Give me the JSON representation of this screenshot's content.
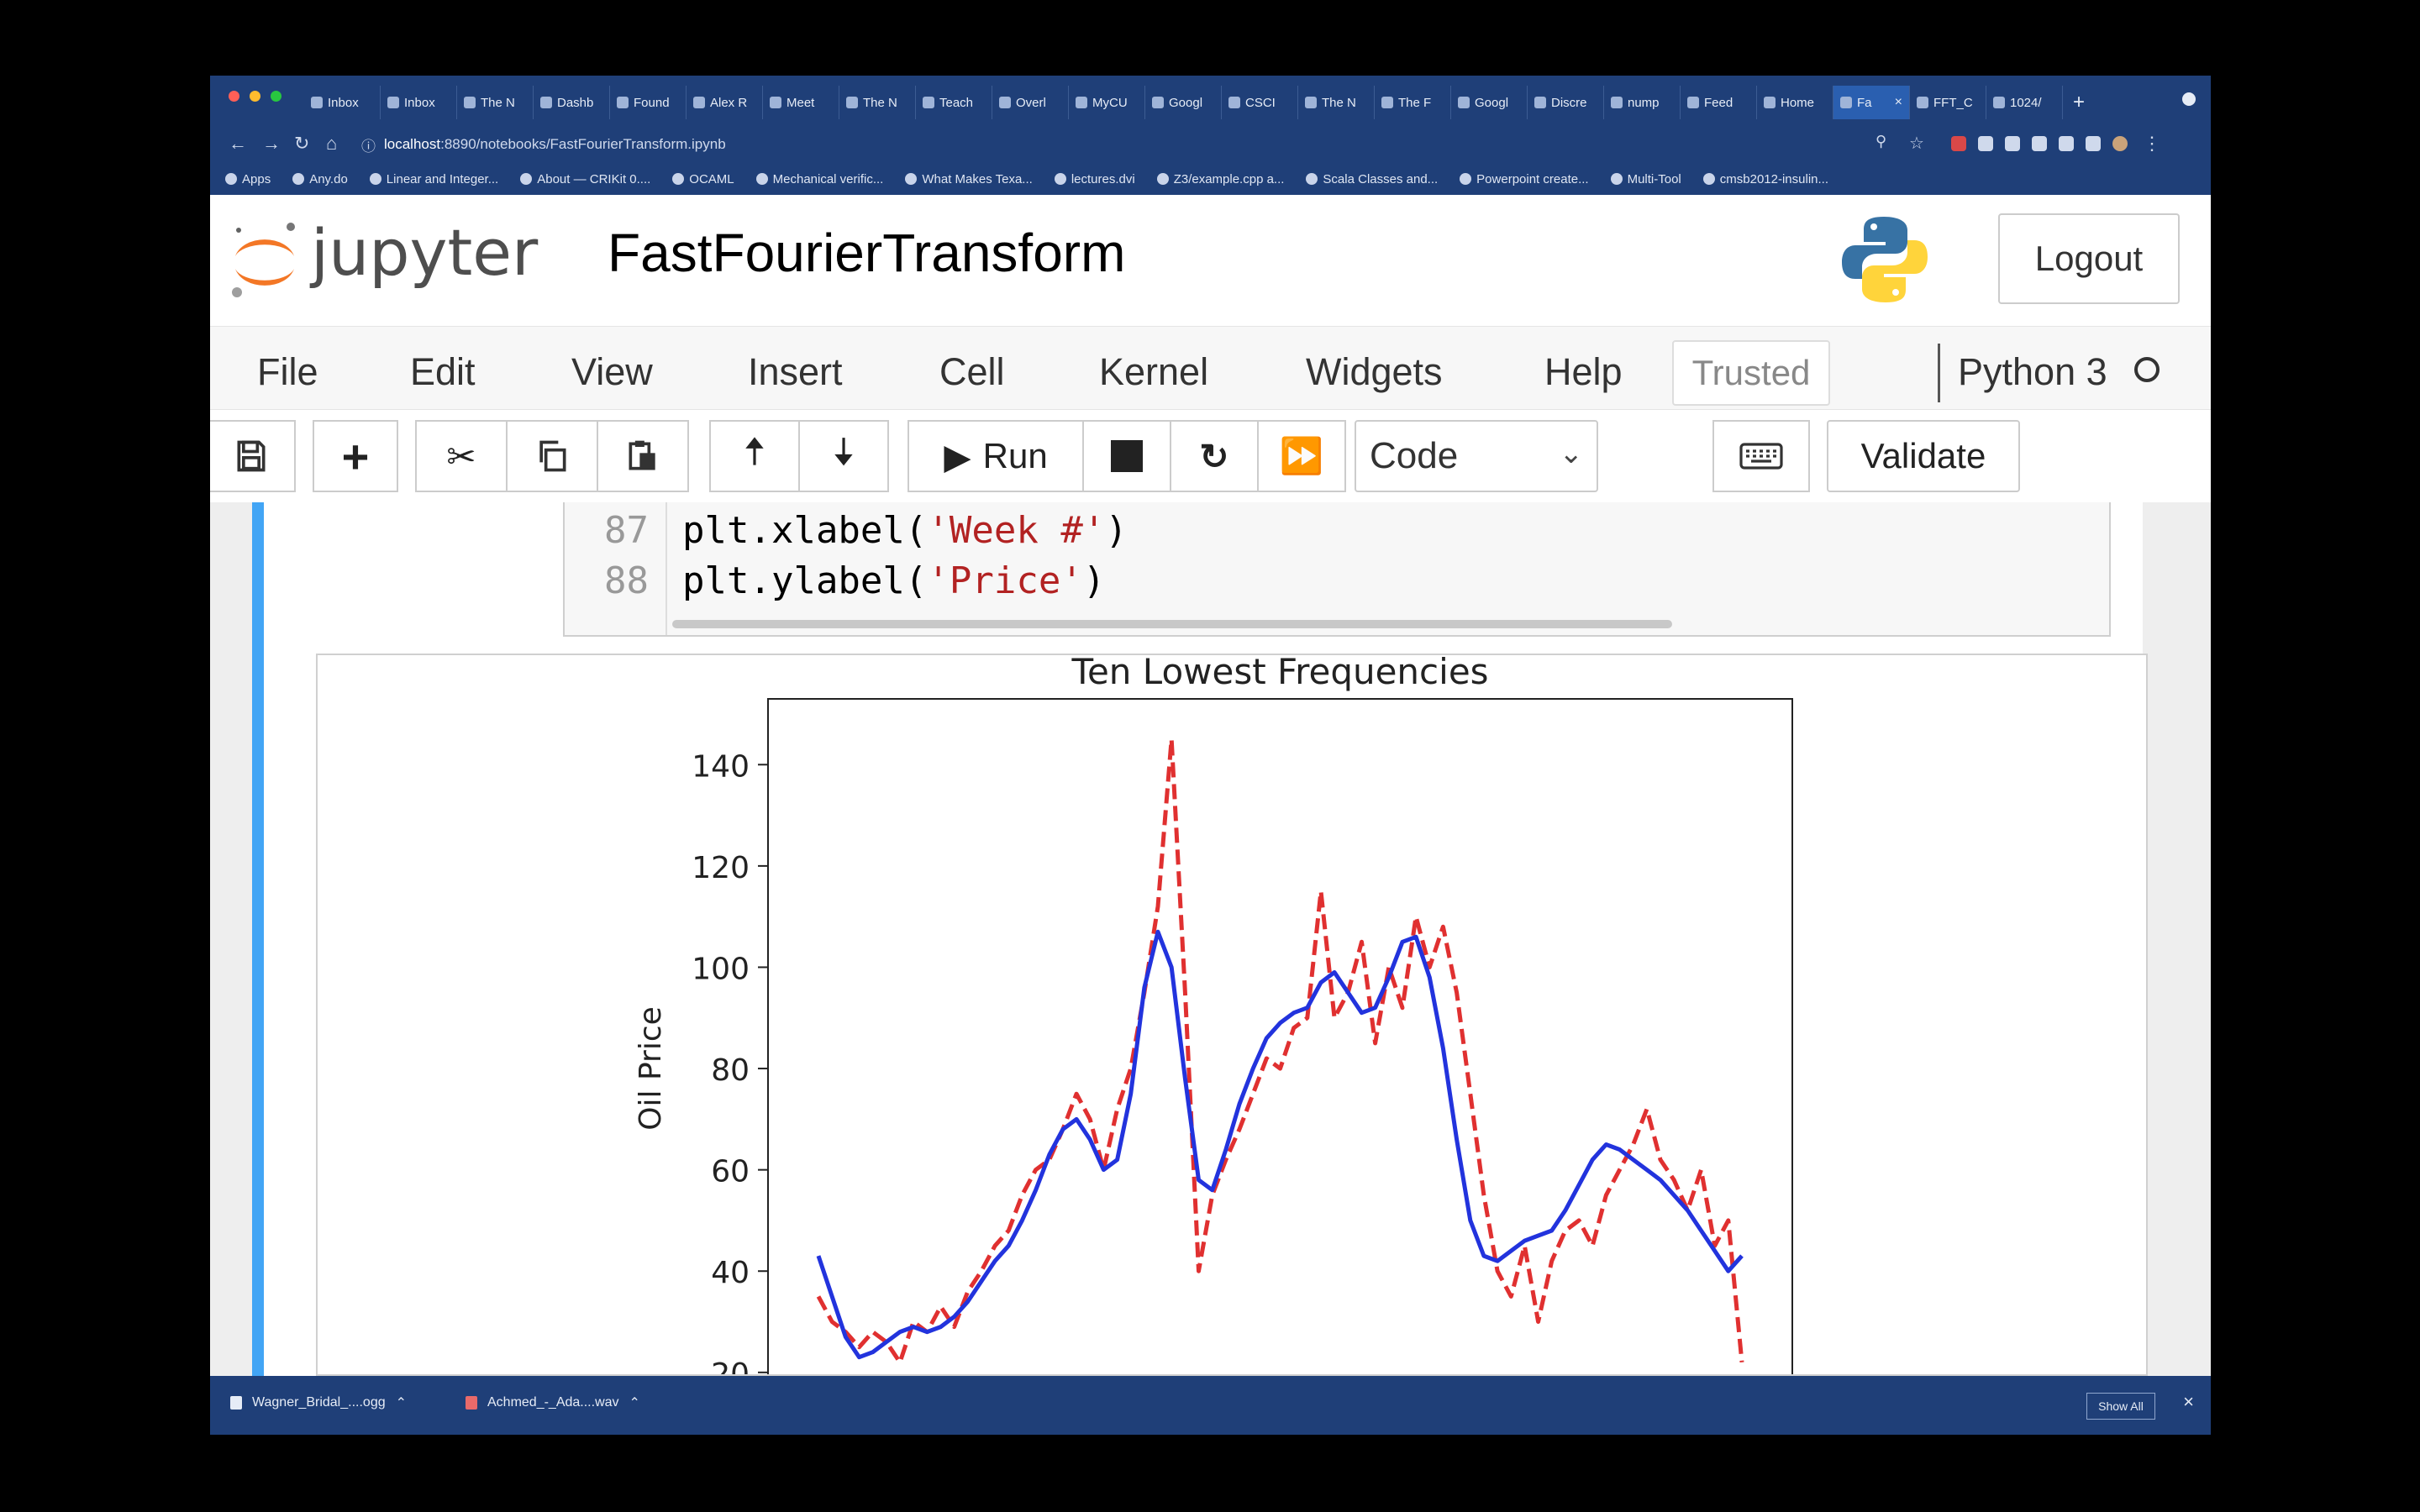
{
  "browser": {
    "tabs": [
      {
        "label": "Inbox",
        "active": false
      },
      {
        "label": "Inbox",
        "active": false
      },
      {
        "label": "The N",
        "active": false
      },
      {
        "label": "Dashb",
        "active": false
      },
      {
        "label": "Found",
        "active": false
      },
      {
        "label": "Alex R",
        "active": false
      },
      {
        "label": "Meet",
        "active": false
      },
      {
        "label": "The N",
        "active": false
      },
      {
        "label": "Teach",
        "active": false
      },
      {
        "label": "Overl",
        "active": false
      },
      {
        "label": "MyCU",
        "active": false
      },
      {
        "label": "Googl",
        "active": false
      },
      {
        "label": "CSCI",
        "active": false
      },
      {
        "label": "The N",
        "active": false
      },
      {
        "label": "The F",
        "active": false
      },
      {
        "label": "Googl",
        "active": false
      },
      {
        "label": "Discre",
        "active": false
      },
      {
        "label": "nump",
        "active": false
      },
      {
        "label": "Feed",
        "active": false
      },
      {
        "label": "Home",
        "active": false
      },
      {
        "label": "Fa",
        "active": true
      },
      {
        "label": "FFT_C",
        "active": false
      },
      {
        "label": "1024/",
        "active": false
      }
    ],
    "url_host": "localhost",
    "url_path": ":8890/notebooks/FastFourierTransform.ipynb",
    "bookmarks": [
      "Apps",
      "Any.do",
      "Linear and Integer...",
      "About — CRIKit 0....",
      "OCAML",
      "Mechanical verific...",
      "What Makes Texa...",
      "lectures.dvi",
      "Z3/example.cpp a...",
      "Scala Classes and...",
      "Powerpoint create...",
      "Multi-Tool",
      "cmsb2012-insulin..."
    ]
  },
  "jupyter": {
    "logo_text": "jupyter",
    "notebook_title": "FastFourierTransform",
    "logout_label": "Logout",
    "menu": [
      "File",
      "Edit",
      "View",
      "Insert",
      "Cell",
      "Kernel",
      "Widgets",
      "Help"
    ],
    "trusted_label": "Trusted",
    "kernel_name": "Python 3",
    "toolbar": {
      "run_label": "Run",
      "cell_type": "Code",
      "validate_label": "Validate"
    }
  },
  "code": {
    "lines": [
      {
        "number": "87",
        "prefix": "plt.xlabel(",
        "string": "'Week #'",
        "suffix": ")"
      },
      {
        "number": "88",
        "prefix": "plt.ylabel(",
        "string": "'Price'",
        "suffix": ")"
      }
    ]
  },
  "chart_data": {
    "type": "line",
    "title": "Ten Lowest Frequencies",
    "xlabel": "",
    "ylabel": "Oil Price",
    "ylim": [
      14,
      150
    ],
    "yticks": [
      20,
      40,
      60,
      80,
      100,
      120,
      140
    ],
    "xlim": [
      0,
      680
    ],
    "series": [
      {
        "style": "dashed",
        "color": "#e03030",
        "x": [
          0,
          10,
          20,
          30,
          40,
          50,
          60,
          70,
          80,
          90,
          100,
          110,
          120,
          130,
          140,
          150,
          160,
          170,
          180,
          190,
          200,
          210,
          220,
          230,
          240,
          250,
          260,
          270,
          280,
          290,
          300,
          310,
          320,
          330,
          340,
          350,
          360,
          370,
          380,
          390,
          400,
          410,
          420,
          430,
          440,
          450,
          460,
          470,
          480,
          490,
          500,
          510,
          520,
          530,
          540,
          550,
          560,
          570,
          580,
          590,
          600,
          610,
          620,
          630,
          640,
          650,
          660,
          670,
          680
        ],
        "values": [
          35,
          30,
          28,
          25,
          28,
          26,
          22,
          30,
          28,
          33,
          29,
          36,
          40,
          45,
          48,
          55,
          60,
          62,
          68,
          75,
          70,
          60,
          72,
          80,
          95,
          112,
          145,
          95,
          40,
          55,
          62,
          68,
          75,
          82,
          80,
          88,
          90,
          115,
          90,
          95,
          105,
          85,
          100,
          92,
          110,
          100,
          108,
          95,
          75,
          55,
          40,
          35,
          45,
          30,
          42,
          48,
          50,
          45,
          55,
          60,
          65,
          72,
          62,
          58,
          52,
          60,
          45,
          50,
          22
        ]
      },
      {
        "style": "solid",
        "color": "#2233dd",
        "x": [
          0,
          10,
          20,
          30,
          40,
          50,
          60,
          70,
          80,
          90,
          100,
          110,
          120,
          130,
          140,
          150,
          160,
          170,
          180,
          190,
          200,
          210,
          220,
          230,
          240,
          250,
          260,
          270,
          280,
          290,
          300,
          310,
          320,
          330,
          340,
          350,
          360,
          370,
          380,
          390,
          400,
          410,
          420,
          430,
          440,
          450,
          460,
          470,
          480,
          490,
          500,
          510,
          520,
          530,
          540,
          550,
          560,
          570,
          580,
          590,
          600,
          610,
          620,
          630,
          640,
          650,
          660,
          670,
          680
        ],
        "values": [
          43,
          35,
          27,
          23,
          24,
          26,
          28,
          29,
          28,
          29,
          31,
          34,
          38,
          42,
          45,
          50,
          56,
          63,
          68,
          70,
          66,
          60,
          62,
          75,
          96,
          107,
          100,
          78,
          58,
          56,
          64,
          73,
          80,
          86,
          89,
          91,
          92,
          97,
          99,
          95,
          91,
          92,
          98,
          105,
          106,
          98,
          84,
          66,
          50,
          43,
          42,
          44,
          46,
          47,
          48,
          52,
          57,
          62,
          65,
          64,
          62,
          60,
          58,
          55,
          52,
          48,
          44,
          40,
          43
        ]
      }
    ]
  }
}
